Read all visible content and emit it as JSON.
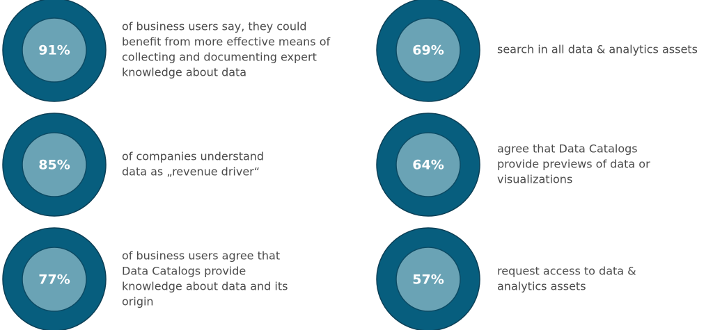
{
  "items": [
    {
      "stat": "91%",
      "lines": [
        "of business users say, they could",
        "benefit from more effective means of",
        "collecting and documenting expert",
        "knowledge about data"
      ]
    },
    {
      "stat": "85%",
      "lines": [
        "of companies understand",
        "data as „revenue driver“"
      ]
    },
    {
      "stat": "77%",
      "lines": [
        "of business users agree that",
        "Data Catalogs provide",
        "knowledge about data and its",
        "origin"
      ]
    },
    {
      "stat": "69%",
      "lines": [
        "search in all data & analytics assets"
      ]
    },
    {
      "stat": "64%",
      "lines": [
        "agree that Data Catalogs",
        "provide previews of data or",
        "visualizations"
      ]
    },
    {
      "stat": "57%",
      "lines": [
        "request access to data &",
        "analytics assets"
      ]
    }
  ]
}
